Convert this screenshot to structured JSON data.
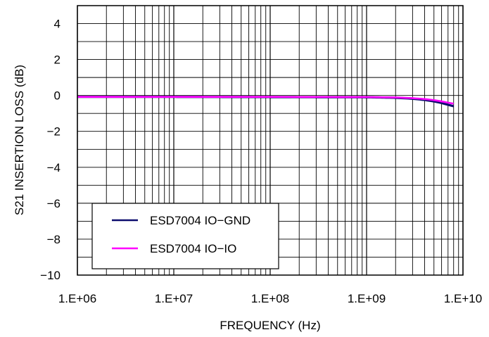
{
  "chart_data": {
    "type": "line",
    "xlabel": "FREQUENCY (Hz)",
    "ylabel": "S21 INSERTION LOSS (dB)",
    "x_scale": "log",
    "xlim": [
      1000000,
      10000000000
    ],
    "ylim": [
      -10,
      5
    ],
    "x_ticks": [
      {
        "value": 1000000,
        "label": "1.E+06"
      },
      {
        "value": 10000000,
        "label": "1.E+07"
      },
      {
        "value": 100000000,
        "label": "1.E+08"
      },
      {
        "value": 1000000000,
        "label": "1.E+09"
      },
      {
        "value": 10000000000,
        "label": "1.E+10"
      }
    ],
    "y_ticks": [
      {
        "value": 4,
        "label": "4"
      },
      {
        "value": 2,
        "label": "2"
      },
      {
        "value": 0,
        "label": "0"
      },
      {
        "value": -2,
        "label": "−2"
      },
      {
        "value": -4,
        "label": "−4"
      },
      {
        "value": -6,
        "label": "−6"
      },
      {
        "value": -8,
        "label": "−8"
      },
      {
        "value": -10,
        "label": "−10"
      }
    ],
    "grid": true,
    "legend_position": "bottom-left",
    "series": [
      {
        "name": "ESD7004 IO−GND",
        "color": "#0c0c6e",
        "x": [
          1000000,
          10000000,
          100000000,
          1000000000,
          2000000000,
          3000000000,
          4000000000,
          5000000000,
          6000000000,
          7000000000,
          8000000000
        ],
        "y": [
          -0.08,
          -0.08,
          -0.09,
          -0.1,
          -0.13,
          -0.18,
          -0.25,
          -0.33,
          -0.42,
          -0.52,
          -0.6
        ]
      },
      {
        "name": "ESD7004 IO−IO",
        "color": "#ff00ff",
        "x": [
          1000000,
          10000000,
          100000000,
          1000000000,
          2000000000,
          3000000000,
          4000000000,
          5000000000,
          6000000000,
          7000000000,
          8000000000
        ],
        "y": [
          -0.08,
          -0.08,
          -0.08,
          -0.09,
          -0.11,
          -0.15,
          -0.2,
          -0.26,
          -0.33,
          -0.4,
          -0.46
        ]
      }
    ]
  }
}
